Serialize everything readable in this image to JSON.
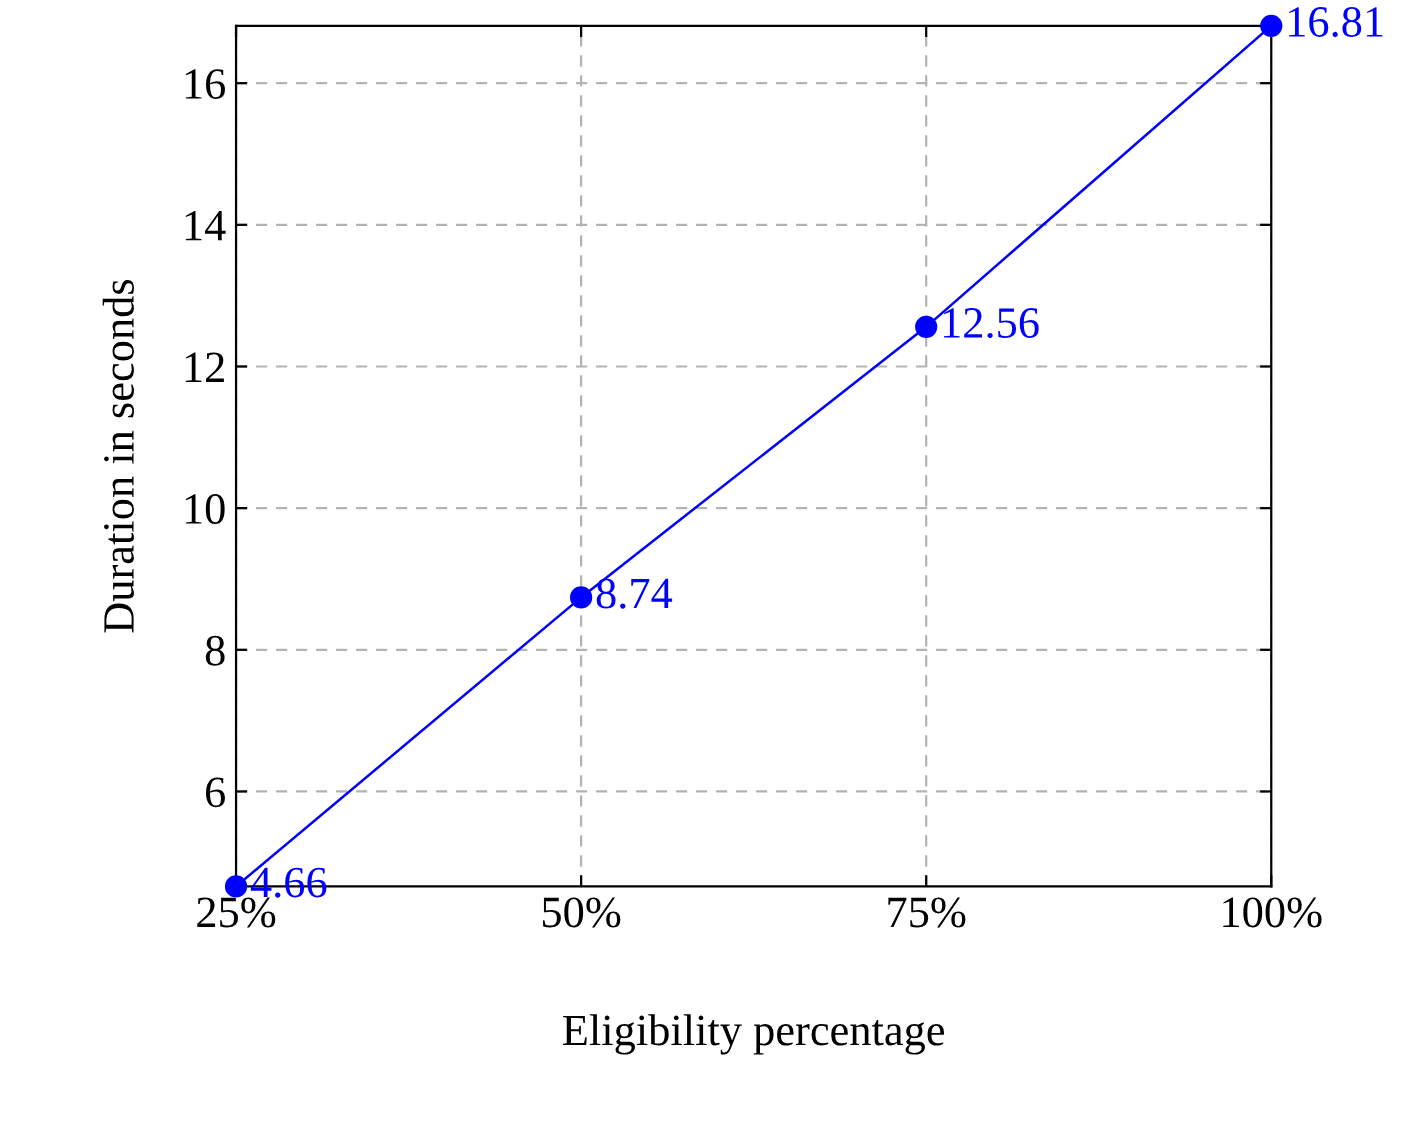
{
  "chart_data": {
    "type": "line",
    "xlabel": "Eligibility percentage",
    "ylabel": "Duration in seconds",
    "x": [
      25,
      50,
      75,
      100
    ],
    "series": [
      {
        "color": "#0000ff",
        "values": [
          4.66,
          8.74,
          12.56,
          16.81
        ]
      }
    ],
    "xlim": [
      25,
      100
    ],
    "ylim": [
      4.66,
      16.81
    ],
    "xticks": [
      {
        "value": 25,
        "label": "25%"
      },
      {
        "value": 50,
        "label": "50%"
      },
      {
        "value": 75,
        "label": "75%"
      },
      {
        "value": 100,
        "label": "100%"
      }
    ],
    "yticks": [
      6,
      8,
      10,
      12,
      14,
      16
    ],
    "grid": true,
    "data_labels": true,
    "marker": "circle",
    "line_style": "solid"
  }
}
